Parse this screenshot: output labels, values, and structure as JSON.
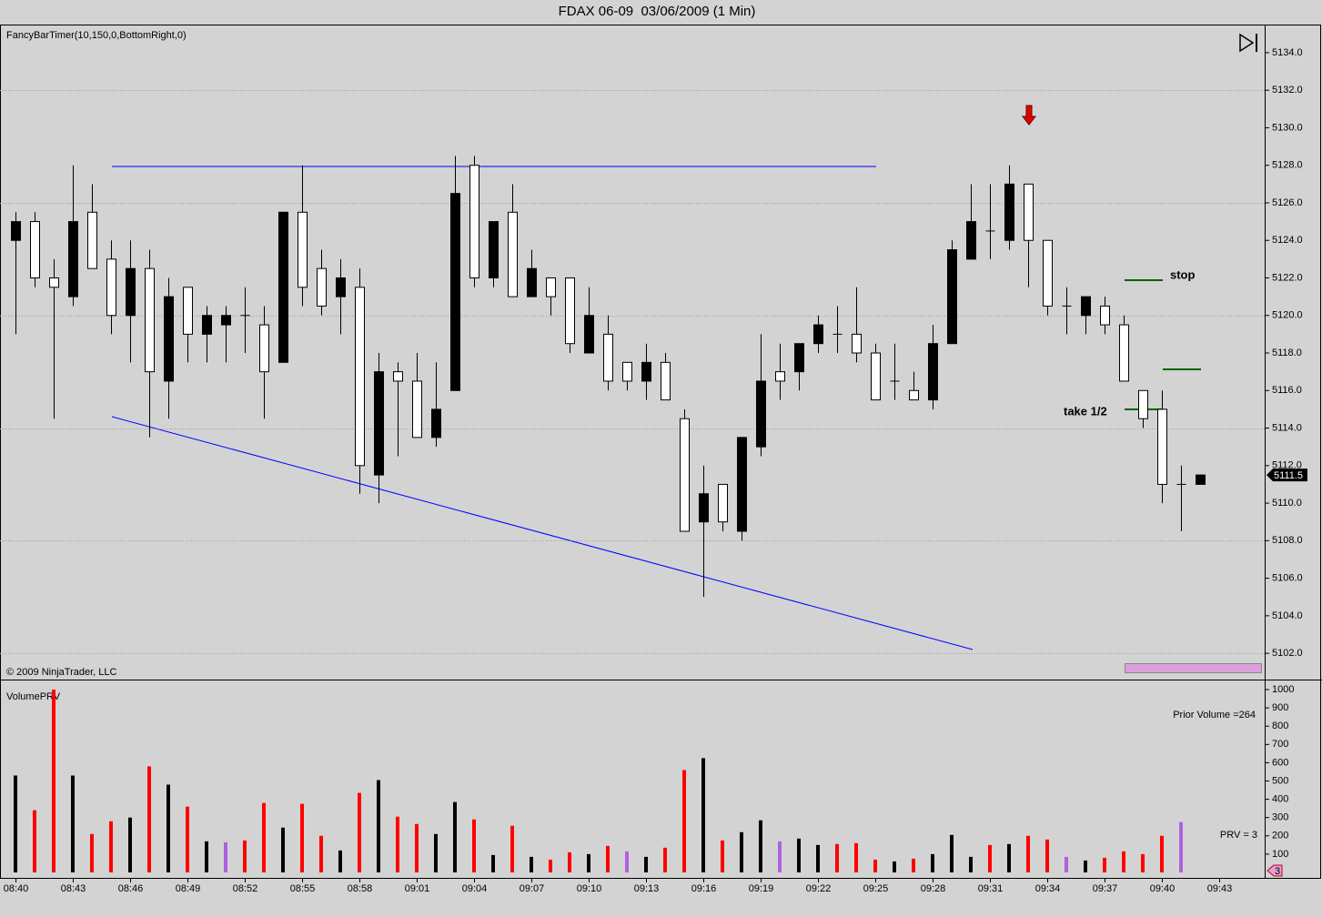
{
  "chart_data": [
    {
      "type": "candlestick",
      "title": "FDAX 06-09  03/06/2009 (1 Min)",
      "indicator_label": "FancyBarTimer(10,150,0,BottomRight,0)",
      "copyright": "© 2009 NinjaTrader, LLC",
      "annotations": [
        "stop",
        "take 1/2"
      ],
      "categories": [
        "08:40",
        null,
        null,
        "08:43",
        null,
        null,
        "08:46",
        null,
        null,
        "08:49",
        null,
        null,
        "08:52",
        null,
        null,
        "08:55",
        null,
        null,
        "08:58",
        null,
        null,
        "09:01",
        null,
        null,
        "09:04",
        null,
        null,
        "09:07",
        null,
        null,
        "09:10",
        null,
        null,
        "09:13",
        null,
        null,
        "09:16",
        null,
        null,
        "09:19",
        null,
        null,
        "09:22",
        null,
        null,
        "09:25",
        null,
        null,
        "09:28",
        null,
        null,
        "09:31",
        null,
        null,
        "09:34",
        null,
        null,
        "09:37",
        null,
        null,
        "09:40",
        null,
        null,
        "09:43"
      ],
      "open": [
        5124,
        5125,
        5122,
        5121,
        5125.5,
        5123,
        5120,
        5122.5,
        5116.5,
        5121.5,
        5119,
        5119.5,
        5120,
        5119.5,
        5117.5,
        5125.5,
        5122.5,
        5121,
        5121.5,
        5111.5,
        5117,
        5116.5,
        5113.5,
        5116,
        5128,
        5122,
        5125.5,
        5121,
        5122,
        5122,
        5118,
        5119,
        5117.5,
        5116.5,
        5117.5,
        5114.5,
        5109,
        5111,
        5108.5,
        5113,
        5117,
        5117,
        5118.5,
        5119,
        5119,
        5118,
        5116.5,
        5116,
        5115.5,
        5118.5,
        5123,
        5124.5,
        5124,
        5127,
        5124,
        5120.5,
        5120,
        5120.5,
        5119.5,
        5116,
        5115,
        5111,
        5111,
        null
      ],
      "high": [
        5125.5,
        5125.5,
        5123,
        5128,
        5127,
        5124,
        5124,
        5123.5,
        5122,
        5121.5,
        5120.5,
        5120.5,
        5121.5,
        5120.5,
        5125.5,
        5128,
        5123.5,
        5123,
        5122.5,
        5118,
        5117.5,
        5118,
        5117.5,
        5128.5,
        5128.5,
        5125,
        5127,
        5123.5,
        5122,
        5122,
        5121.5,
        5120,
        5117.5,
        5118.5,
        5118,
        5115,
        5112,
        5111,
        5113.5,
        5119,
        5118.5,
        5118.5,
        5120,
        5120.5,
        5121.5,
        5118.5,
        5118.5,
        5117,
        5119.5,
        5124,
        5127,
        5127,
        5128,
        5127,
        5124,
        5121.5,
        5121,
        5121,
        5120,
        5116,
        5116,
        5112,
        5111.5,
        null
      ],
      "low": [
        5119,
        5121.5,
        5114.5,
        5120.5,
        5122.5,
        5119,
        5117.5,
        5113.5,
        5114.5,
        5117.5,
        5117.5,
        5117.5,
        5118,
        5114.5,
        5117.5,
        5120.5,
        5120,
        5119,
        5110.5,
        5110,
        5112.5,
        5113.5,
        5113,
        5116,
        5121.5,
        5121.5,
        5121,
        5121,
        5120,
        5118,
        5118,
        5116,
        5116,
        5115.5,
        5115.5,
        5108.5,
        5105,
        5108.5,
        5108,
        5112.5,
        5115.5,
        5116,
        5118,
        5118,
        5117.5,
        5115.5,
        5115.5,
        5115.5,
        5115,
        5118.5,
        5123,
        5123,
        5123.5,
        5121.5,
        5120,
        5119,
        5119,
        5119,
        5116.5,
        5114,
        5110,
        5108.5,
        5111,
        null
      ],
      "close": [
        5125,
        5122,
        5121.5,
        5125,
        5122.5,
        5120,
        5122.5,
        5117,
        5121,
        5119,
        5120,
        5120,
        5120,
        5117,
        5125.5,
        5121.5,
        5120.5,
        5122,
        5112,
        5117,
        5116.5,
        5113.5,
        5115,
        5126.5,
        5122,
        5125,
        5121,
        5122.5,
        5121,
        5118.5,
        5120,
        5116.5,
        5116.5,
        5117.5,
        5115.5,
        5108.5,
        5110.5,
        5109,
        5113.5,
        5116.5,
        5116.5,
        5118.5,
        5119.5,
        5119,
        5118,
        5115.5,
        5116.5,
        5115.5,
        5118.5,
        5123.5,
        5125,
        5124.5,
        5127,
        5124,
        5120.5,
        5120.5,
        5121,
        5119.5,
        5116.5,
        5114.5,
        5111,
        5111,
        5111.5,
        null
      ],
      "up_color": "#000000",
      "down_color": "#ffffff",
      "ylim": [
        5100.6,
        5135.45
      ],
      "yticks": [
        {
          "value": 5102,
          "label": "5102.0"
        },
        {
          "value": 5104,
          "label": "5104.0"
        },
        {
          "value": 5106,
          "label": "5106.0"
        },
        {
          "value": 5108,
          "label": "5108.0"
        },
        {
          "value": 5110,
          "label": "5110.0"
        },
        {
          "value": 5112,
          "label": "5112.0"
        },
        {
          "value": 5114,
          "label": "5114.0"
        },
        {
          "value": 5116,
          "label": "5116.0"
        },
        {
          "value": 5118,
          "label": "5118.0"
        },
        {
          "value": 5120,
          "label": "5120.0"
        },
        {
          "value": 5122,
          "label": "5122.0"
        },
        {
          "value": 5124,
          "label": "5124.0"
        },
        {
          "value": 5126,
          "label": "5126.0"
        },
        {
          "value": 5128,
          "label": "5128.0"
        },
        {
          "value": 5130,
          "label": "5130.0"
        },
        {
          "value": 5132,
          "label": "5132.0"
        },
        {
          "value": 5134,
          "label": "5134.0"
        }
      ],
      "gridlines": [
        5102,
        5108,
        5114,
        5120,
        5126,
        5132
      ]
    },
    {
      "type": "bar",
      "title": "VolumePRV",
      "prior_volume_label": "Prior Volume =264",
      "prv_label": "PRV = 3",
      "marker_label": "3",
      "values": [
        530,
        340,
        1000,
        530,
        210,
        280,
        300,
        580,
        480,
        360,
        170,
        165,
        175,
        380,
        245,
        375,
        200,
        120,
        435,
        505,
        305,
        265,
        210,
        385,
        290,
        95,
        255,
        85,
        70,
        110,
        100,
        145,
        115,
        85,
        135,
        560,
        625,
        175,
        220,
        285,
        170,
        185,
        150,
        155,
        160,
        70,
        60,
        75,
        100,
        205,
        85,
        150,
        155,
        200,
        180,
        85,
        65,
        80,
        115,
        100,
        200,
        275,
        null,
        null
      ],
      "colors": [
        "#000000",
        "#ff0000",
        "#ff0000",
        "#000000",
        "#ff0000",
        "#ff0000",
        "#000000",
        "#ff0000",
        "#000000",
        "#ff0000",
        "#000000",
        "#b060e0",
        "#ff0000",
        "#ff0000",
        "#000000",
        "#ff0000",
        "#ff0000",
        "#000000",
        "#ff0000",
        "#000000",
        "#ff0000",
        "#ff0000",
        "#000000",
        "#000000",
        "#ff0000",
        "#000000",
        "#ff0000",
        "#000000",
        "#ff0000",
        "#ff0000",
        "#000000",
        "#ff0000",
        "#b060e0",
        "#000000",
        "#ff0000",
        "#ff0000",
        "#000000",
        "#ff0000",
        "#000000",
        "#000000",
        "#b060e0",
        "#000000",
        "#000000",
        "#ff0000",
        "#ff0000",
        "#ff0000",
        "#000000",
        "#ff0000",
        "#000000",
        "#000000",
        "#000000",
        "#ff0000",
        "#000000",
        "#ff0000",
        "#ff0000",
        "#b060e0",
        "#000000",
        "#ff0000",
        "#ff0000",
        "#ff0000",
        "#ff0000",
        "#b060e0",
        null,
        null
      ],
      "ylim": [
        -30,
        1050
      ],
      "yticks": [
        100,
        200,
        300,
        400,
        500,
        600,
        700,
        800,
        900,
        1000
      ]
    }
  ]
}
